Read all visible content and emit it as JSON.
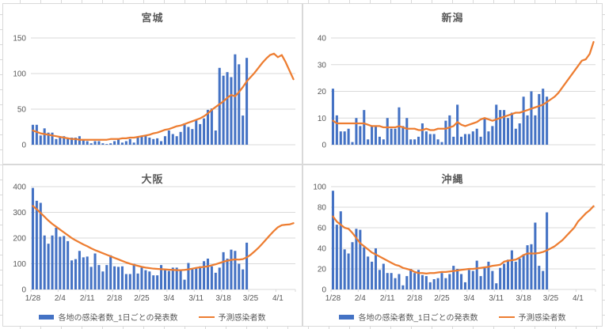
{
  "legend": {
    "bars_label": "各地の感染者数_1日ごとの発表数",
    "line_label": "予測感染者数"
  },
  "colors": {
    "bar_blue": "#4472C4",
    "line_orange": "#ED7D31",
    "gridline": "#D9D9D9",
    "axis_text": "#595959",
    "title_text": "#595959"
  },
  "x_axis": {
    "tick_labels": [
      "1/28",
      "2/4",
      "2/11",
      "2/18",
      "2/25",
      "3/4",
      "3/11",
      "3/18",
      "3/25",
      "4/1"
    ],
    "tick_day_indices": [
      0,
      7,
      14,
      21,
      28,
      35,
      42,
      49,
      56,
      63
    ],
    "total_days": 68,
    "bar_days": 56
  },
  "chart_data": [
    {
      "type": "bar+line",
      "title": "宮城",
      "ylim": [
        0,
        150
      ],
      "yticks": [
        0,
        50,
        100,
        150
      ],
      "grid": true,
      "legend_position": "none",
      "series": [
        {
          "name": "各地の感染者数_1日ごとの発表数",
          "type": "bar",
          "values": [
            28,
            28,
            13,
            23,
            17,
            17,
            8,
            10,
            12,
            9,
            10,
            10,
            12,
            7,
            5,
            2,
            5,
            5,
            2,
            1,
            2,
            5,
            8,
            3,
            5,
            8,
            3,
            10,
            12,
            13,
            10,
            8,
            9,
            5,
            12,
            20,
            15,
            12,
            18,
            30,
            25,
            22,
            35,
            29,
            37,
            49,
            51,
            20,
            108,
            97,
            102,
            95,
            127,
            113,
            41,
            122
          ]
        },
        {
          "name": "予測感染者数",
          "type": "line",
          "values": [
            20,
            18,
            16,
            15,
            14,
            13,
            12,
            11,
            10,
            9,
            8,
            8,
            7,
            7,
            7,
            7,
            7,
            7,
            7,
            7,
            8,
            8,
            8,
            9,
            9,
            10,
            10,
            11,
            12,
            13,
            14,
            16,
            17,
            19,
            21,
            22,
            24,
            26,
            27,
            29,
            31,
            33,
            35,
            37,
            40,
            44,
            49,
            53,
            57,
            61,
            66,
            70,
            68,
            74,
            81,
            89,
            95,
            101,
            108,
            115,
            121,
            126,
            128,
            123,
            126,
            116,
            104,
            92
          ]
        }
      ]
    },
    {
      "type": "bar+line",
      "title": "新潟",
      "ylim": [
        0,
        40
      ],
      "yticks": [
        0,
        10,
        20,
        30,
        40
      ],
      "grid": true,
      "legend_position": "none",
      "series": [
        {
          "name": "各地の感染者数_1日ごとの発表数",
          "type": "bar",
          "values": [
            21,
            11,
            5,
            5,
            6,
            1,
            10,
            7,
            13,
            2,
            7,
            7,
            3,
            2,
            10,
            6,
            6,
            14,
            7,
            10,
            2,
            2,
            3,
            8,
            5,
            4,
            4,
            2,
            1,
            9,
            11,
            3,
            15,
            3,
            4,
            4,
            5,
            6,
            3,
            10,
            5,
            7,
            15,
            13,
            13,
            10,
            12,
            6,
            8,
            18,
            11,
            20,
            11,
            19,
            21,
            18
          ]
        },
        {
          "name": "予測感染者数",
          "type": "line",
          "values": [
            9,
            8,
            8,
            8,
            8,
            8,
            8,
            8,
            8,
            7.5,
            7,
            7,
            7,
            6.5,
            6.5,
            6.5,
            6.5,
            7,
            6.5,
            6,
            6,
            6,
            5.5,
            5.5,
            6,
            5.5,
            5.5,
            6,
            6,
            6,
            6.5,
            7,
            8.5,
            7.5,
            7,
            7.5,
            8,
            8.5,
            9.5,
            10,
            9.5,
            9,
            9.5,
            10,
            10.5,
            11,
            11.5,
            12,
            12,
            12.5,
            13,
            13.5,
            14,
            14.5,
            15,
            16,
            17,
            18,
            19.5,
            21.5,
            23.5,
            25.5,
            27.5,
            29.5,
            31.5,
            32,
            34,
            38.5
          ]
        }
      ]
    },
    {
      "type": "bar+line",
      "title": "大阪",
      "ylim": [
        0,
        400
      ],
      "yticks": [
        0,
        100,
        200,
        300,
        400
      ],
      "grid": true,
      "legend_position": "bottom",
      "series": [
        {
          "name": "各地の感染者数_1日ごとの発表数",
          "type": "bar",
          "values": [
            395,
            345,
            337,
            210,
            178,
            210,
            240,
            205,
            208,
            188,
            113,
            118,
            150,
            125,
            128,
            88,
            140,
            95,
            70,
            95,
            133,
            90,
            88,
            90,
            60,
            60,
            100,
            62,
            85,
            75,
            70,
            55,
            55,
            95,
            75,
            72,
            85,
            85,
            75,
            38,
            103,
            80,
            85,
            90,
            110,
            120,
            90,
            65,
            85,
            145,
            120,
            155,
            150,
            100,
            78,
            182
          ]
        },
        {
          "name": "予測感染者数",
          "type": "line",
          "values": [
            325,
            312,
            298,
            283,
            268,
            255,
            244,
            233,
            222,
            211,
            200,
            191,
            183,
            175,
            168,
            160,
            153,
            147,
            141,
            135,
            129,
            123,
            117,
            111,
            105,
            100,
            96,
            92,
            88,
            85,
            83,
            81,
            80,
            79,
            78,
            77,
            76,
            75,
            75,
            76,
            78,
            81,
            84,
            86,
            88,
            90,
            94,
            98,
            103,
            108,
            112,
            115,
            117,
            116,
            118,
            125,
            135,
            148,
            162,
            178,
            195,
            212,
            228,
            242,
            250,
            252,
            253,
            258
          ]
        }
      ]
    },
    {
      "type": "bar+line",
      "title": "沖縄",
      "ylim": [
        0,
        100
      ],
      "yticks": [
        0,
        20,
        40,
        60,
        80,
        100
      ],
      "grid": true,
      "legend_position": "bottom",
      "series": [
        {
          "name": "各地の感染者数_1日ごとの発表数",
          "type": "bar",
          "values": [
            96,
            63,
            76,
            39,
            35,
            46,
            59,
            58,
            41,
            32,
            27,
            40,
            19,
            25,
            16,
            16,
            11,
            15,
            4,
            13,
            20,
            16,
            19,
            14,
            13,
            7,
            10,
            11,
            16,
            11,
            15,
            23,
            20,
            15,
            7,
            19,
            18,
            28,
            13,
            22,
            27,
            18,
            6,
            21,
            25,
            29,
            38,
            27,
            30,
            34,
            43,
            44,
            65,
            23,
            18,
            75
          ]
        },
        {
          "name": "予測感染者数",
          "type": "line",
          "values": [
            71,
            66,
            63,
            60,
            59,
            55,
            50,
            45,
            42,
            39,
            36,
            34,
            32,
            30,
            28,
            26,
            24,
            23,
            21,
            20,
            19,
            17,
            16,
            16,
            15.5,
            16,
            16,
            16.5,
            17,
            17,
            17.5,
            18,
            18.5,
            19,
            19.5,
            20,
            20,
            20.5,
            21,
            21.5,
            22,
            23,
            23.5,
            24,
            27,
            28,
            28.5,
            29,
            31,
            33.5,
            35,
            35,
            35,
            35.5,
            36.5,
            38,
            40,
            42,
            45,
            48,
            52,
            56,
            60,
            66,
            70,
            74,
            77,
            81
          ]
        }
      ]
    }
  ]
}
